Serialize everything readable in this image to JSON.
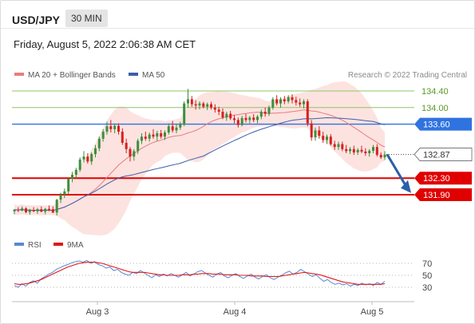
{
  "header": {
    "symbol": "USD/JPY",
    "interval": "30 MIN",
    "datetime": "Friday, August 5, 2022 2:06:38 AM CET"
  },
  "legend": {
    "ma20": "MA 20 + Bollinger Bands",
    "ma50": "MA 50",
    "credit": "Research © 2022 Trading Central",
    "rsi": "RSI",
    "rsi_ma": "9MA"
  },
  "colors": {
    "ma20": "#e87d7d",
    "band_fill": "#fbd9d6",
    "ma50": "#3d5fa8",
    "candle_up": "#3c8f3c",
    "candle_down": "#d62020",
    "green_level": "#8fc466",
    "blue_level": "#2f73e0",
    "red_level": "#e00000",
    "arrow": "#2960a8",
    "rsi": "#5b87d6",
    "rsi_ma": "#e01818",
    "current_tag": "#3a3a3a"
  },
  "chart_data": [
    {
      "type": "candlestick",
      "title": "USD/JPY 30 MIN",
      "ylim": [
        131.15,
        134.65
      ],
      "x_ticks": [
        "Aug 3",
        "Aug 4",
        "Aug 5"
      ],
      "current_price": 132.87,
      "levels": [
        {
          "label": "134.40",
          "value": 134.4,
          "style": "resistance-green"
        },
        {
          "label": "134.00",
          "value": 134.0,
          "style": "resistance-green"
        },
        {
          "label": "133.60",
          "value": 133.6,
          "style": "pivot-blue"
        },
        {
          "label": "132.30",
          "value": 132.3,
          "style": "target-red"
        },
        {
          "label": "131.90",
          "value": 131.9,
          "style": "target-red"
        }
      ],
      "forecast": {
        "from": 132.87,
        "to": 132.0,
        "direction": "down"
      },
      "candles": [
        [
          131.5,
          131.55,
          131.43,
          131.54
        ],
        [
          131.54,
          131.6,
          131.48,
          131.52
        ],
        [
          131.52,
          131.62,
          131.5,
          131.57
        ],
        [
          131.57,
          131.6,
          131.45,
          131.48
        ],
        [
          131.48,
          131.56,
          131.42,
          131.53
        ],
        [
          131.53,
          131.6,
          131.48,
          131.5
        ],
        [
          131.5,
          131.58,
          131.44,
          131.55
        ],
        [
          131.55,
          131.62,
          131.48,
          131.49
        ],
        [
          131.49,
          131.58,
          131.43,
          131.56
        ],
        [
          131.56,
          131.64,
          131.5,
          131.55
        ],
        [
          131.55,
          131.62,
          131.46,
          131.47
        ],
        [
          131.47,
          131.8,
          131.4,
          131.78
        ],
        [
          131.78,
          131.95,
          131.7,
          131.9
        ],
        [
          131.9,
          132.05,
          131.82,
          131.98
        ],
        [
          131.98,
          132.3,
          131.92,
          132.28
        ],
        [
          132.28,
          132.45,
          132.2,
          132.38
        ],
        [
          132.38,
          132.55,
          132.3,
          132.5
        ],
        [
          132.5,
          132.8,
          132.45,
          132.75
        ],
        [
          132.75,
          132.95,
          132.68,
          132.82
        ],
        [
          132.82,
          132.9,
          132.65,
          132.7
        ],
        [
          132.7,
          132.92,
          132.62,
          132.88
        ],
        [
          132.88,
          133.1,
          132.8,
          133.02
        ],
        [
          133.02,
          133.3,
          132.95,
          133.25
        ],
        [
          133.25,
          133.48,
          133.18,
          133.42
        ],
        [
          133.42,
          133.66,
          133.35,
          133.55
        ],
        [
          133.55,
          133.7,
          133.4,
          133.48
        ],
        [
          133.48,
          133.62,
          133.38,
          133.56
        ],
        [
          133.56,
          133.62,
          133.35,
          133.42
        ],
        [
          133.42,
          133.5,
          133.1,
          133.15
        ],
        [
          133.15,
          133.25,
          132.9,
          133.0
        ],
        [
          133.0,
          133.05,
          132.7,
          132.82
        ],
        [
          132.82,
          133.0,
          132.72,
          132.95
        ],
        [
          132.95,
          133.25,
          132.88,
          133.2
        ],
        [
          133.2,
          133.38,
          133.12,
          133.3
        ],
        [
          133.3,
          133.42,
          133.2,
          133.25
        ],
        [
          133.25,
          133.4,
          133.18,
          133.35
        ],
        [
          133.35,
          133.48,
          133.25,
          133.3
        ],
        [
          133.3,
          133.44,
          133.2,
          133.38
        ],
        [
          133.38,
          133.46,
          133.25,
          133.3
        ],
        [
          133.3,
          133.45,
          133.22,
          133.4
        ],
        [
          133.4,
          133.62,
          133.35,
          133.55
        ],
        [
          133.55,
          133.68,
          133.4,
          133.45
        ],
        [
          133.45,
          133.6,
          133.38,
          133.52
        ],
        [
          133.52,
          133.66,
          133.46,
          133.6
        ],
        [
          133.6,
          134.15,
          133.55,
          134.1
        ],
        [
          134.1,
          134.45,
          134.0,
          134.2
        ],
        [
          134.2,
          134.28,
          134.02,
          134.08
        ],
        [
          134.08,
          134.18,
          133.95,
          134.05
        ],
        [
          134.05,
          134.15,
          133.96,
          134.1
        ],
        [
          134.1,
          134.14,
          133.98,
          134.02
        ],
        [
          134.02,
          134.12,
          133.94,
          134.08
        ],
        [
          134.08,
          134.14,
          133.95,
          134.0
        ],
        [
          134.0,
          134.08,
          133.88,
          133.95
        ],
        [
          133.95,
          134.02,
          133.82,
          133.9
        ],
        [
          133.9,
          133.98,
          133.72,
          133.76
        ],
        [
          133.76,
          133.9,
          133.68,
          133.85
        ],
        [
          133.85,
          133.92,
          133.7,
          133.74
        ],
        [
          133.74,
          133.82,
          133.62,
          133.7
        ],
        [
          133.7,
          133.76,
          133.52,
          133.58
        ],
        [
          133.58,
          133.8,
          133.55,
          133.75
        ],
        [
          133.75,
          133.85,
          133.64,
          133.7
        ],
        [
          133.7,
          133.8,
          133.62,
          133.76
        ],
        [
          133.76,
          133.84,
          133.65,
          133.7
        ],
        [
          133.7,
          133.82,
          133.62,
          133.78
        ],
        [
          133.78,
          133.95,
          133.72,
          133.9
        ],
        [
          133.9,
          134.0,
          133.78,
          133.85
        ],
        [
          133.85,
          134.05,
          133.8,
          134.0
        ],
        [
          134.0,
          134.25,
          133.95,
          134.2
        ],
        [
          134.2,
          134.3,
          134.05,
          134.1
        ],
        [
          134.1,
          134.25,
          134.0,
          134.2
        ],
        [
          134.2,
          134.28,
          134.08,
          134.15
        ],
        [
          134.15,
          134.3,
          134.1,
          134.25
        ],
        [
          134.25,
          134.32,
          134.1,
          134.18
        ],
        [
          134.18,
          134.26,
          134.05,
          134.12
        ],
        [
          134.12,
          134.22,
          134.02,
          134.08
        ],
        [
          134.08,
          134.2,
          133.98,
          134.15
        ],
        [
          134.15,
          134.2,
          133.55,
          133.62
        ],
        [
          133.62,
          133.7,
          133.2,
          133.28
        ],
        [
          133.28,
          133.52,
          133.2,
          133.45
        ],
        [
          133.45,
          133.55,
          133.25,
          133.32
        ],
        [
          133.32,
          133.42,
          133.15,
          133.22
        ],
        [
          133.22,
          133.35,
          133.12,
          133.3
        ],
        [
          133.3,
          133.36,
          133.08,
          133.12
        ],
        [
          133.12,
          133.2,
          132.98,
          133.05
        ],
        [
          133.05,
          133.18,
          132.98,
          133.12
        ],
        [
          133.12,
          133.18,
          132.95,
          133.0
        ],
        [
          133.0,
          133.1,
          132.9,
          132.95
        ],
        [
          132.95,
          133.05,
          132.88,
          133.0
        ],
        [
          133.0,
          133.08,
          132.86,
          132.92
        ],
        [
          132.92,
          133.02,
          132.86,
          132.98
        ],
        [
          132.98,
          133.08,
          132.9,
          132.94
        ],
        [
          132.94,
          133.02,
          132.84,
          132.9
        ],
        [
          132.9,
          133.0,
          132.82,
          132.96
        ],
        [
          132.96,
          133.1,
          132.9,
          133.05
        ],
        [
          133.05,
          133.12,
          132.82,
          132.86
        ],
        [
          132.86,
          132.92,
          132.76,
          132.8
        ],
        [
          132.8,
          132.95,
          132.74,
          132.87
        ]
      ]
    },
    {
      "type": "line",
      "title": "RSI",
      "ylim": [
        22,
        82
      ],
      "y_ticks": [
        70,
        50,
        30
      ],
      "series": [
        {
          "name": "RSI",
          "values": [
            33,
            30,
            36,
            32,
            38,
            41,
            37,
            44,
            48,
            52,
            55,
            60,
            63,
            66,
            68,
            71,
            73,
            74,
            72,
            75,
            70,
            73,
            68,
            66,
            62,
            64,
            58,
            60,
            55,
            52,
            50,
            55,
            53,
            58,
            54,
            50,
            46,
            51,
            48,
            52,
            49,
            53,
            50,
            47,
            51,
            55,
            49,
            52,
            56,
            58,
            54,
            50,
            47,
            52,
            55,
            49,
            46,
            50,
            53,
            48,
            45,
            49,
            52,
            47,
            44,
            48,
            51,
            46,
            43,
            47,
            50,
            54,
            57,
            52,
            55,
            60,
            56,
            52,
            48,
            51,
            45,
            40,
            43,
            38,
            35,
            37,
            34,
            36,
            32,
            35,
            33,
            37,
            34,
            36,
            33,
            38,
            35,
            40
          ]
        },
        {
          "name": "9MA",
          "values": [
            36,
            35,
            35,
            36,
            37,
            39,
            41,
            43,
            46,
            49,
            52,
            55,
            58,
            61,
            64,
            66,
            68,
            70,
            71,
            72,
            72,
            72,
            71,
            70,
            68,
            66,
            64,
            62,
            60,
            58,
            56,
            55,
            55,
            55,
            55,
            54,
            53,
            52,
            51,
            51,
            50,
            50,
            50,
            50,
            51,
            51,
            51,
            52,
            52,
            53,
            53,
            53,
            52,
            52,
            52,
            51,
            51,
            51,
            51,
            50,
            50,
            50,
            49,
            49,
            49,
            49,
            48,
            48,
            48,
            48,
            49,
            50,
            51,
            52,
            53,
            54,
            55,
            54,
            53,
            52,
            51,
            49,
            47,
            45,
            43,
            41,
            39,
            38,
            37,
            36,
            35,
            35,
            35,
            35,
            35,
            35,
            35,
            36
          ]
        }
      ]
    }
  ]
}
